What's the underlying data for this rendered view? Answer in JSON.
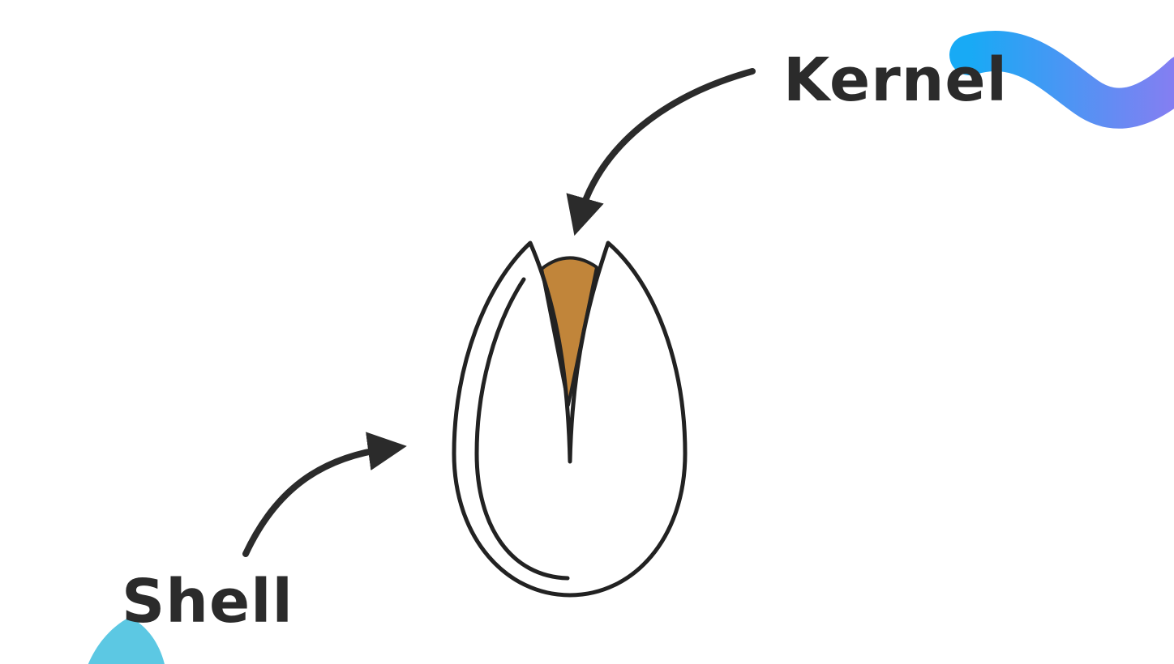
{
  "labels": {
    "kernel": "Kernel",
    "shell": "Shell"
  },
  "colors": {
    "outline": "#222222",
    "kernel_fill": "#c1853a",
    "text": "#2b2b2b",
    "wave_start": "#18aaf5",
    "wave_end": "#8a7cf2",
    "blob": "#5cc8e3"
  },
  "icons": {
    "main": "pistachio-icon",
    "kernel_pointer": "curved-arrow-icon",
    "shell_pointer": "curved-arrow-icon"
  }
}
